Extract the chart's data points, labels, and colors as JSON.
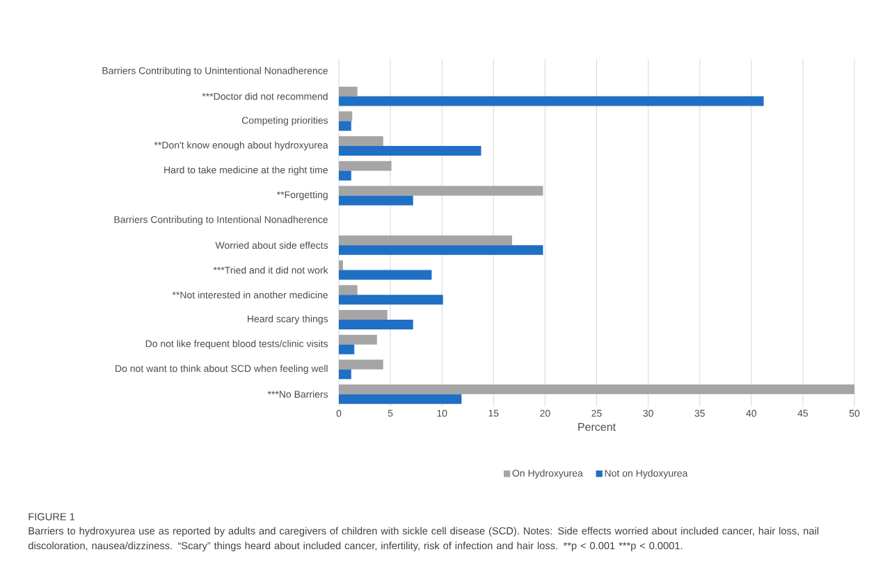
{
  "chart_data": {
    "type": "bar",
    "orientation": "horizontal",
    "categories": [
      "Barriers Contributing to Unintentional Nonadherence",
      "***Doctor did not recommend",
      "Competing priorities",
      "**Don't know enough about hydroxyurea",
      "Hard to take medicine at the right time",
      "**Forgetting",
      "Barriers Contributing to Intentional Nonadherence",
      "Worried about side effects",
      "***Tried and it did not work",
      "**Not interested in another medicine",
      "Heard scary things",
      "Do not like frequent blood tests/clinic visits",
      "Do not want to think about SCD when feeling well",
      "***No Barriers"
    ],
    "series": [
      {
        "name": "On Hydroxyurea",
        "color": "#a5a5a5",
        "values": [
          null,
          1.8,
          1.3,
          4.3,
          5.1,
          19.8,
          null,
          16.8,
          0.4,
          1.8,
          4.7,
          3.7,
          4.3,
          50.0
        ]
      },
      {
        "name": "Not on Hydoxyurea",
        "color": "#1f6fc5",
        "values": [
          null,
          41.2,
          1.2,
          13.8,
          1.2,
          7.2,
          null,
          19.8,
          9.0,
          10.1,
          7.2,
          1.5,
          1.2,
          11.9
        ]
      }
    ],
    "xlabel": "Percent",
    "xlim": [
      0,
      50
    ],
    "xticks": [
      0,
      5,
      10,
      15,
      20,
      25,
      30,
      35,
      40,
      45,
      50
    ],
    "grid": "x",
    "legend": "bottom",
    "annotations": [
      "FIGURE 1",
      "Barriers to hydroxyurea use as reported by adults and caregivers of children with sickle cell disease (SCD). Notes: Side effects worried about included cancer, hair loss, nail discoloration, nausea/dizziness. “Scary” things heard about included cancer, infertility, risk of infection and hair loss.",
      "**p < 0.001",
      "***p < 0.0001."
    ]
  }
}
